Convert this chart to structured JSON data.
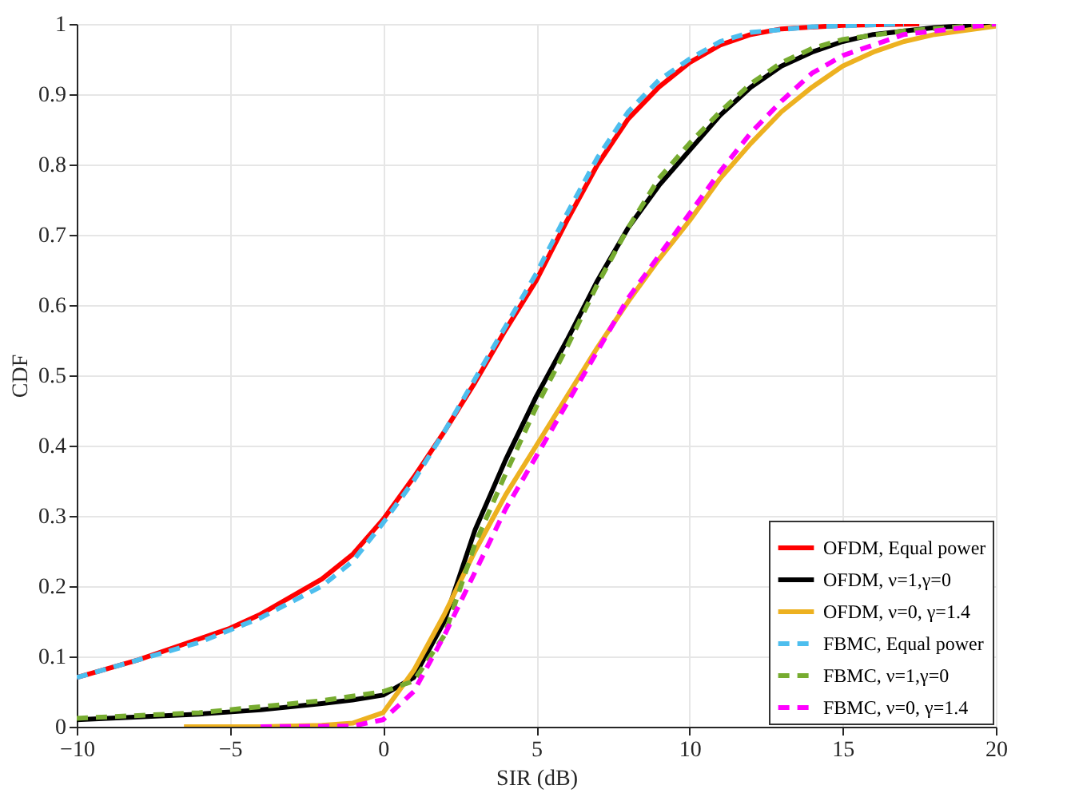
{
  "chart_data": {
    "type": "line",
    "xlabel": "SIR (dB)",
    "ylabel": "CDF",
    "xlim": [
      -10,
      20
    ],
    "ylim": [
      0,
      1
    ],
    "xticks": [
      -10,
      -5,
      0,
      5,
      10,
      15,
      20
    ],
    "yticks": [
      0,
      0.1,
      0.2,
      0.3,
      0.4,
      0.5,
      0.6,
      0.7,
      0.8,
      0.9,
      1
    ],
    "grid": true,
    "legend": "bottom right",
    "series": [
      {
        "name": "OFDM, Equal power",
        "color": "#ff0000",
        "line_style": "solid",
        "x": [
          -10,
          -8,
          -6,
          -5,
          -4,
          -2,
          -1,
          0,
          1,
          2,
          3,
          4,
          5,
          6,
          7,
          8,
          9,
          10,
          11,
          12,
          13,
          15,
          17.5
        ],
        "values": [
          0.07,
          0.095,
          0.125,
          0.14,
          0.16,
          0.21,
          0.245,
          0.295,
          0.355,
          0.42,
          0.49,
          0.565,
          0.635,
          0.72,
          0.8,
          0.865,
          0.91,
          0.945,
          0.97,
          0.985,
          0.993,
          0.998,
          1.0
        ]
      },
      {
        "name": "OFDM, ν=1,γ=0",
        "color": "#000000",
        "line_style": "solid",
        "x": [
          -10,
          -6,
          -4,
          -2,
          -1,
          0,
          1,
          2,
          3,
          4,
          5,
          6,
          7,
          8,
          9,
          10,
          11,
          12,
          13,
          14,
          15,
          16,
          18,
          20
        ],
        "values": [
          0.01,
          0.018,
          0.024,
          0.033,
          0.038,
          0.045,
          0.07,
          0.15,
          0.28,
          0.38,
          0.47,
          0.55,
          0.635,
          0.71,
          0.77,
          0.82,
          0.87,
          0.91,
          0.94,
          0.96,
          0.975,
          0.985,
          0.995,
          1.0
        ]
      },
      {
        "name": "OFDM, ν=0, γ=1.4",
        "color": "#edb120",
        "line_style": "solid",
        "x": [
          -6.5,
          -4,
          -2,
          -1,
          0,
          1,
          2,
          3,
          4,
          5,
          6,
          7,
          8,
          9,
          10,
          11,
          12,
          13,
          14,
          15,
          16,
          17,
          18,
          20
        ],
        "values": [
          0.0,
          0.0,
          0.002,
          0.005,
          0.02,
          0.08,
          0.16,
          0.25,
          0.33,
          0.4,
          0.47,
          0.54,
          0.605,
          0.665,
          0.72,
          0.78,
          0.83,
          0.875,
          0.91,
          0.94,
          0.96,
          0.975,
          0.985,
          0.997
        ]
      },
      {
        "name": "FBMC, Equal power",
        "color": "#4dbeee",
        "line_style": "dashed",
        "x": [
          -10,
          -6,
          -4,
          -2,
          -1,
          0,
          1,
          2,
          3,
          4,
          5,
          6,
          7,
          8,
          9,
          10,
          11,
          12,
          14,
          17
        ],
        "values": [
          0.07,
          0.12,
          0.155,
          0.2,
          0.235,
          0.29,
          0.35,
          0.42,
          0.495,
          0.57,
          0.645,
          0.73,
          0.81,
          0.875,
          0.92,
          0.95,
          0.975,
          0.988,
          0.996,
          1.0
        ]
      },
      {
        "name": "FBMC, ν=1,γ=0",
        "color": "#77ac30",
        "line_style": "dashed",
        "x": [
          -10,
          -6,
          -2,
          0,
          1,
          2,
          3,
          4,
          5,
          6,
          7,
          8,
          9,
          10,
          11,
          12,
          13,
          14,
          15,
          17,
          20
        ],
        "values": [
          0.012,
          0.02,
          0.037,
          0.05,
          0.065,
          0.13,
          0.26,
          0.36,
          0.455,
          0.54,
          0.63,
          0.71,
          0.78,
          0.83,
          0.875,
          0.915,
          0.945,
          0.965,
          0.978,
          0.99,
          1.0
        ]
      },
      {
        "name": "FBMC, ν=0, γ=1.4",
        "color": "#ff00ff",
        "line_style": "dashed",
        "x": [
          -4,
          -1,
          0,
          1,
          2,
          3,
          4,
          5,
          6,
          7,
          8,
          9,
          10,
          11,
          12,
          13,
          14,
          15,
          16,
          17,
          18,
          20
        ],
        "values": [
          0.0,
          0.001,
          0.01,
          0.05,
          0.13,
          0.22,
          0.31,
          0.385,
          0.46,
          0.535,
          0.61,
          0.67,
          0.73,
          0.79,
          0.845,
          0.89,
          0.93,
          0.955,
          0.97,
          0.985,
          0.99,
          1.0
        ]
      }
    ]
  }
}
